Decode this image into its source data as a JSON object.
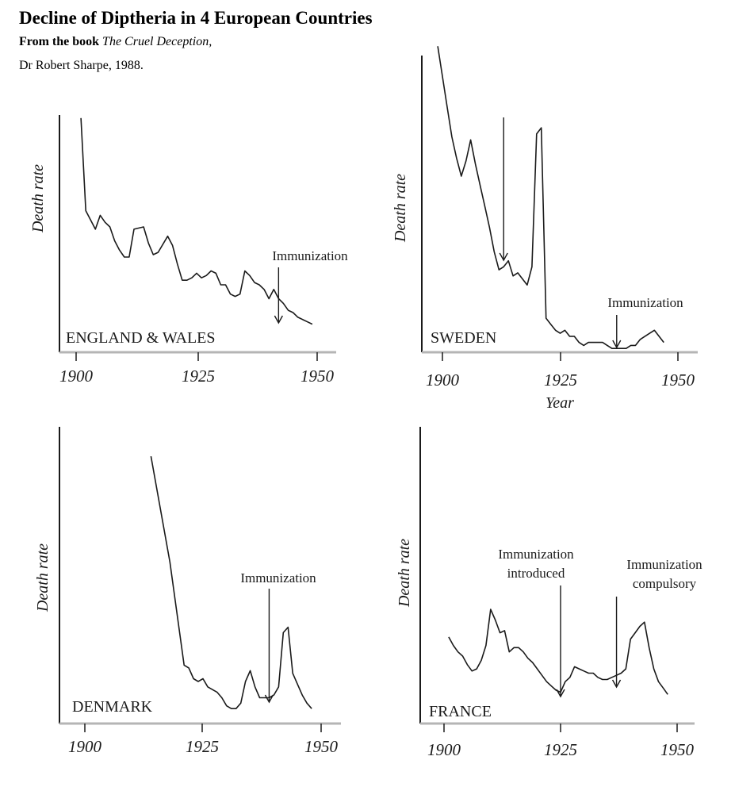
{
  "header": {
    "title": "Decline of Diptheria in 4 European Countries",
    "source_prefix": "From the book ",
    "source_book": "The Cruel Deception,",
    "source_author": "Dr Robert Sharpe, 1988."
  },
  "colors": {
    "ink": "#1a1a1a",
    "axis_grey": "#b5b5b5"
  },
  "chart_data": [
    {
      "type": "line",
      "title": "ENGLAND & WALES",
      "ylabel": "Death rate",
      "xlabel": "",
      "xlim": [
        1900,
        1950
      ],
      "ylim": [
        0,
        100
      ],
      "xticks": [
        "1900",
        "1925",
        "1950"
      ],
      "series": [
        {
          "x": [
            1901,
            1902,
            1904,
            1905,
            1906,
            1907,
            1908,
            1909,
            1910,
            1911,
            1912,
            1914,
            1915,
            1916,
            1917,
            1919,
            1920,
            1921,
            1922,
            1923,
            1924,
            1925,
            1926,
            1927,
            1928,
            1929,
            1930,
            1931,
            1932,
            1933,
            1934,
            1935,
            1936,
            1937,
            1938,
            1939,
            1940,
            1941,
            1942,
            1943,
            1944,
            1945,
            1946,
            1948,
            1949
          ],
          "y": [
            97,
            57,
            49,
            55,
            52,
            50,
            44,
            40,
            37,
            37,
            49,
            50,
            43,
            38,
            39,
            46,
            42,
            34,
            27,
            27,
            28,
            30,
            28,
            29,
            31,
            30,
            25,
            25,
            21,
            20,
            21,
            31,
            29,
            26,
            25,
            23,
            19,
            23,
            19,
            17,
            14,
            13,
            11,
            9,
            8
          ]
        }
      ],
      "annotations": [
        {
          "lines": [
            "Immunization"
          ],
          "year": 1942
        }
      ]
    },
    {
      "type": "line",
      "title": "SWEDEN",
      "ylabel": "Death rate",
      "xlabel": "Year",
      "xlim": [
        1900,
        1950
      ],
      "ylim": [
        0,
        100
      ],
      "xticks": [
        "1900",
        "1925",
        "1950"
      ],
      "series": [
        {
          "x": [
            1899,
            1900,
            1901,
            1902,
            1903,
            1904,
            1905,
            1906,
            1907,
            1908,
            1909,
            1910,
            1911,
            1912,
            1913,
            1914,
            1915,
            1916,
            1917,
            1918,
            1919,
            1920,
            1921,
            1922,
            1923,
            1924,
            1925,
            1926,
            1927,
            1928,
            1929,
            1930,
            1931,
            1932,
            1933,
            1934,
            1935,
            1936,
            1937,
            1938,
            1939,
            1940,
            1941,
            1942,
            1943,
            1944,
            1945,
            1946,
            1947
          ],
          "y": [
            101,
            91,
            81,
            71,
            64,
            58,
            63,
            70,
            62,
            55,
            48,
            41,
            33,
            27,
            28,
            30,
            25,
            26,
            24,
            22,
            28,
            72,
            74,
            11,
            9,
            7,
            6,
            7,
            5,
            5,
            3,
            2,
            3,
            3,
            3,
            3,
            2,
            1,
            1,
            1,
            1,
            2,
            2,
            4,
            5,
            6,
            7,
            5,
            3
          ]
        }
      ],
      "annotations": [
        {
          "lines": [
            ""
          ],
          "year": 1913
        },
        {
          "lines": [
            "Immunization"
          ],
          "year": 1937
        }
      ]
    },
    {
      "type": "line",
      "title": "DENMARK",
      "ylabel": "Death rate",
      "xlabel": "",
      "xlim": [
        1900,
        1950
      ],
      "ylim": [
        0,
        100
      ],
      "xticks": [
        "1900",
        "1925",
        "1950"
      ],
      "series": [
        {
          "x": [
            1914,
            1918,
            1921,
            1922,
            1923,
            1924,
            1925,
            1926,
            1927,
            1928,
            1929,
            1930,
            1931,
            1932,
            1933,
            1934,
            1935,
            1936,
            1937,
            1938,
            1939,
            1940,
            1941,
            1942,
            1943,
            1944,
            1945,
            1946,
            1947,
            1948
          ],
          "y": [
            95,
            56,
            18,
            17,
            13,
            12,
            13,
            10,
            9,
            8,
            6,
            3,
            2,
            2,
            4,
            12,
            16,
            10,
            6,
            6,
            6,
            7,
            10,
            30,
            32,
            15,
            11,
            7,
            4,
            2
          ]
        }
      ],
      "annotations": [
        {
          "lines": [
            "Immunization"
          ],
          "year": 1939
        }
      ]
    },
    {
      "type": "line",
      "title": "FRANCE",
      "ylabel": "Death rate",
      "xlabel": "",
      "xlim": [
        1900,
        1950
      ],
      "ylim": [
        0,
        100
      ],
      "xticks": [
        "1900",
        "1925",
        "1950"
      ],
      "series": [
        {
          "x": [
            1901,
            1902,
            1903,
            1904,
            1905,
            1906,
            1907,
            1908,
            1909,
            1910,
            1911,
            1912,
            1913,
            1914,
            1915,
            1916,
            1917,
            1918,
            1919,
            1920,
            1921,
            1922,
            1923,
            1924,
            1925,
            1926,
            1927,
            1928,
            1929,
            1930,
            1931,
            1932,
            1933,
            1934,
            1935,
            1936,
            1937,
            1938,
            1939,
            1940,
            1941,
            1942,
            1943,
            1944,
            1945,
            1946,
            1947,
            1948
          ],
          "y": [
            31,
            27,
            24,
            22,
            18,
            15,
            16,
            20,
            27,
            44,
            39,
            33,
            34,
            24,
            26,
            26,
            24,
            21,
            19,
            16,
            13,
            10,
            8,
            6,
            5,
            10,
            12,
            17,
            16,
            15,
            14,
            14,
            12,
            11,
            11,
            12,
            13,
            14,
            16,
            30,
            33,
            36,
            38,
            26,
            16,
            10,
            7,
            4
          ]
        }
      ],
      "annotations": [
        {
          "lines": [
            "Immunization",
            "introduced"
          ],
          "year": 1925
        },
        {
          "lines": [
            "Immunization",
            "compulsory"
          ],
          "year": 1937
        }
      ]
    }
  ]
}
